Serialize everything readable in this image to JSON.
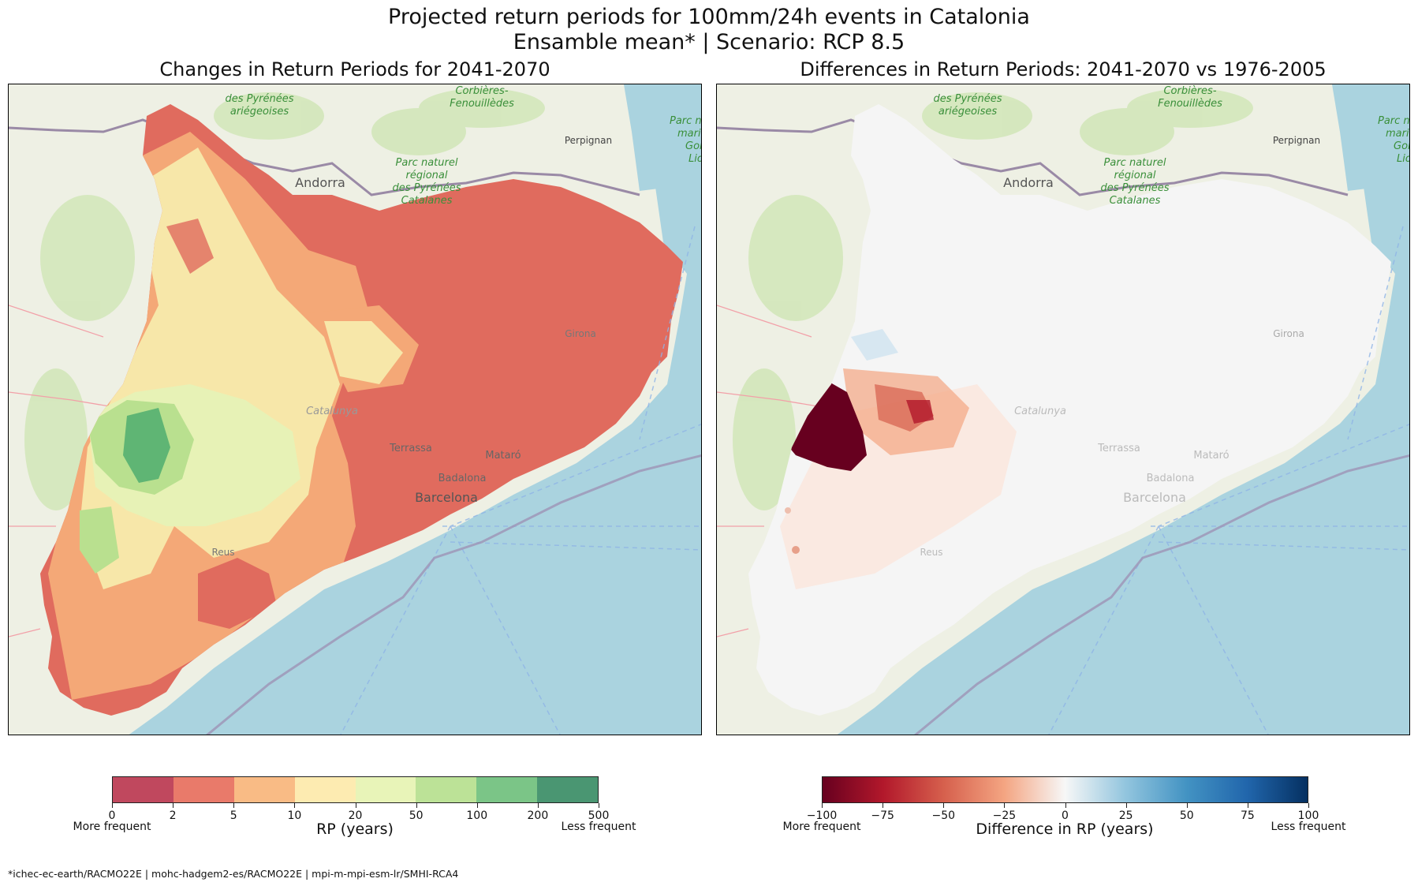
{
  "title": {
    "line1": "Projected return periods for 100mm/24h events in Catalonia",
    "line2": "Ensamble mean* | Scenario: RCP 8.5"
  },
  "panels": [
    {
      "title": "Changes in Return Periods for 2041-2070"
    },
    {
      "title": "Differences in Return Periods: 2041-2070 vs 1976-2005"
    }
  ],
  "map_labels": {
    "andorra": "Andorra",
    "perpignan": "Perpignan",
    "girona": "Girona",
    "catalunya": "Catalunya",
    "terrassa": "Terrassa",
    "mataro": "Mataró",
    "badalona": "Badalona",
    "barcelona": "Barcelona",
    "reus": "Reus",
    "pyrenees_ariegeoises": [
      "des Pyrénées",
      "ariégeoises"
    ],
    "corbieres": [
      "Corbières-",
      "Fenouillèdes"
    ],
    "parc_pyrenees_catalanes": [
      "Parc naturel",
      "régional",
      "des Pyrénées",
      "Catalanes"
    ],
    "parc_marin": [
      "Parc na",
      "marin",
      "Golfe",
      "Lio"
    ]
  },
  "colorbar_left": {
    "label": "RP (years)",
    "ticks": [
      "0",
      "2",
      "5",
      "10",
      "20",
      "50",
      "100",
      "200",
      "500"
    ],
    "colors": [
      "#c0485e",
      "#e97a6a",
      "#f9bb85",
      "#fdebb1",
      "#e8f4b8",
      "#bce297",
      "#7bc587",
      "#4a9672"
    ],
    "min_label": "More frequent",
    "max_label": "Less frequent"
  },
  "colorbar_right": {
    "label": "Difference in RP (years)",
    "ticks": [
      "−100",
      "−75",
      "−50",
      "−25",
      "0",
      "25",
      "50",
      "75",
      "100"
    ],
    "colors": [
      "#67001f",
      "#b2182b",
      "#d6604d",
      "#f4a582",
      "#f7f7f7",
      "#92c5de",
      "#4393c3",
      "#2166ac",
      "#053061"
    ],
    "min_label": "More frequent",
    "max_label": "Less frequent"
  },
  "colors": {
    "sea": "#aad3df",
    "land": "#eef0e4",
    "base_red": "#e06b5e",
    "border": "#9a8aa6"
  },
  "footnote": "*ichec-ec-earth/RACMO22E | mohc-hadgem2-es/RACMO22E | mpi-m-mpi-esm-lr/SMHI-RCA4"
}
